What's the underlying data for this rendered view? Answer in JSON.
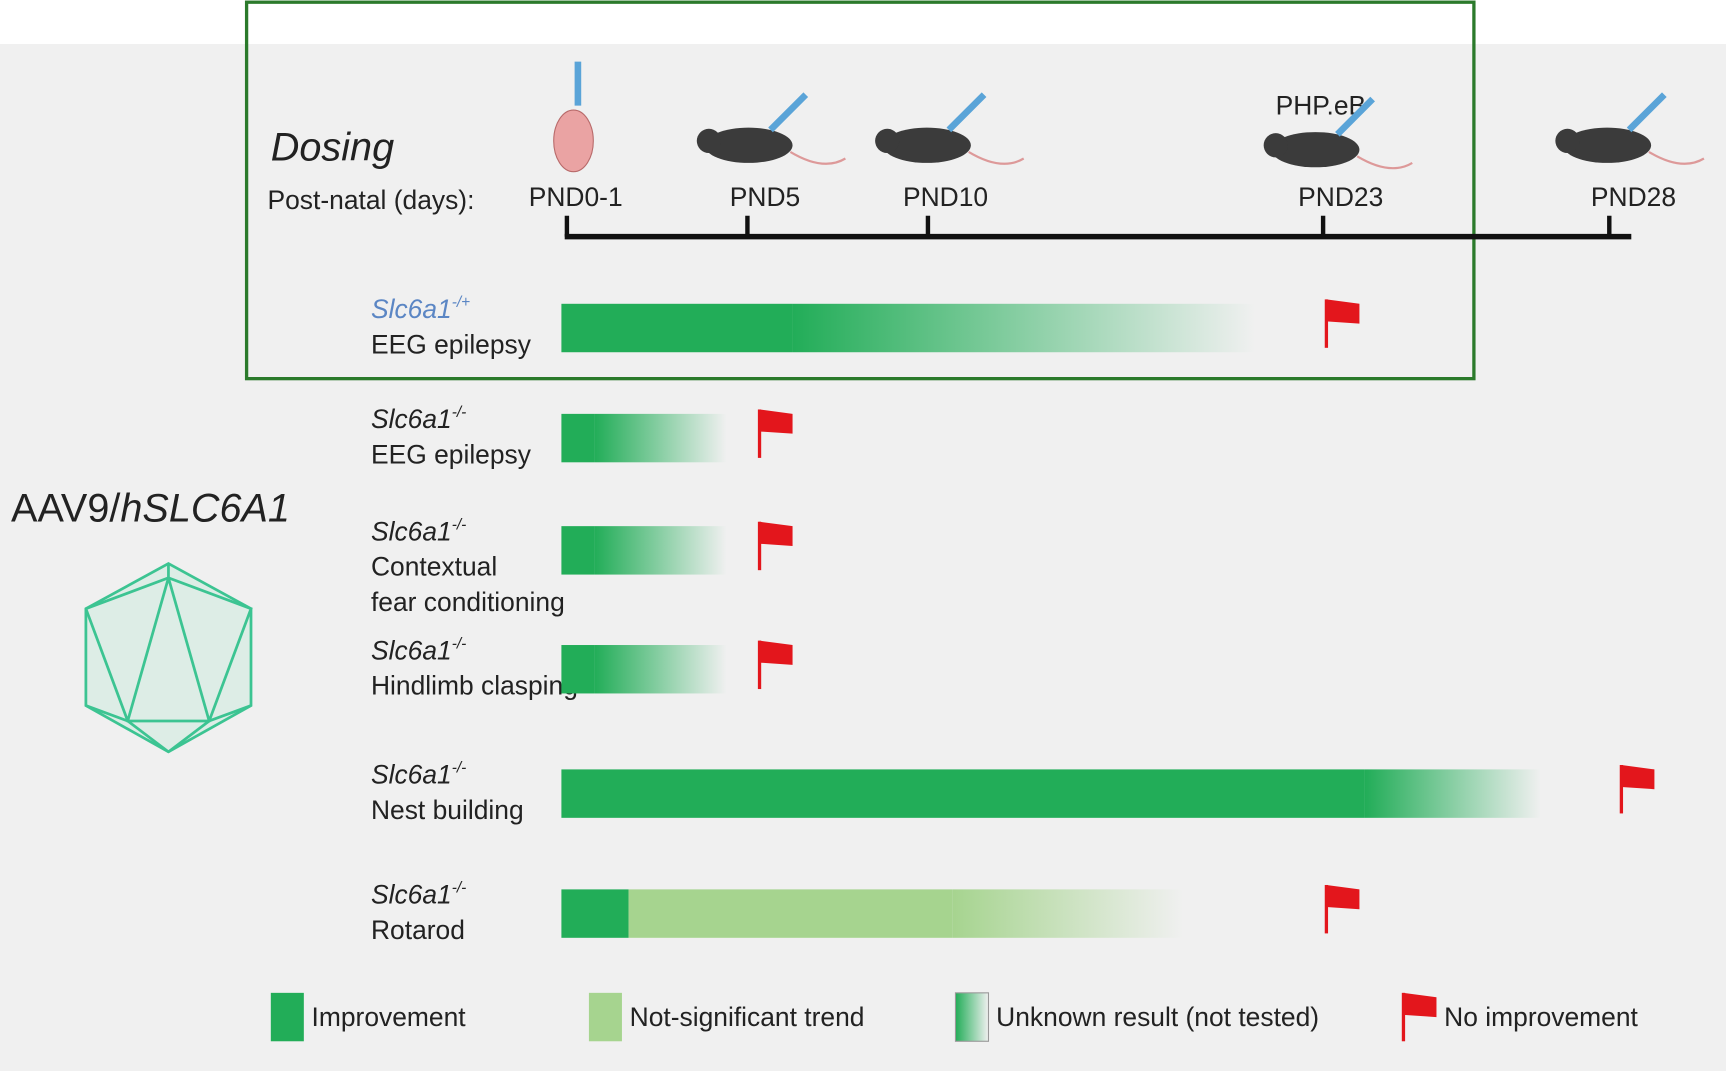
{
  "title": "Dosing",
  "axis_label": "Post-natal (days):",
  "timepoints": [
    "PND0-1",
    "PND5",
    "PND10",
    "PND23",
    "PND28"
  ],
  "timepoint_note": "PHP.eB",
  "vector": {
    "prefix": "AAV9/",
    "gene": "hSLC6A1"
  },
  "rows": [
    {
      "genotype": "Slc6a1",
      "zygosity": "-/+",
      "measure": [
        "EEG epilepsy"
      ]
    },
    {
      "genotype": "Slc6a1",
      "zygosity": "-/-",
      "measure": [
        "EEG epilepsy"
      ]
    },
    {
      "genotype": "Slc6a1",
      "zygosity": "-/-",
      "measure": [
        "Contextual",
        "fear conditioning"
      ]
    },
    {
      "genotype": "Slc6a1",
      "zygosity": "-/-",
      "measure": [
        "Hindlimb clasping"
      ]
    },
    {
      "genotype": "Slc6a1",
      "zygosity": "-/-",
      "measure": [
        "Nest building"
      ]
    },
    {
      "genotype": "Slc6a1",
      "zygosity": "-/-",
      "measure": [
        "Rotarod"
      ]
    }
  ],
  "legend": [
    "Improvement",
    "Not-significant trend",
    "Unknown result (not tested)",
    "No improvement"
  ]
}
